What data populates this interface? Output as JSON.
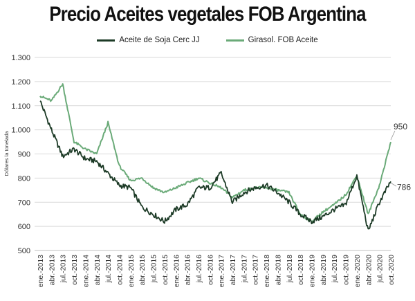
{
  "chart_data": {
    "type": "line",
    "title": "Precio Aceites vegetales FOB Argentina",
    "xlabel": "",
    "ylabel": "Dólares la tonelada",
    "ylim": [
      500,
      1300
    ],
    "yticks": [
      500,
      600,
      700,
      800,
      900,
      1000,
      1100,
      1200,
      1300
    ],
    "ytick_labels": [
      "500",
      "600",
      "700",
      "800",
      "900",
      "1.000",
      "1.100",
      "1.200",
      "1.300"
    ],
    "grid": "horizontal",
    "legend": "top-center",
    "x_tick_labels": [
      "ene.-2013",
      "abr.-2013",
      "jul.-2013",
      "oct.-2013",
      "ene.-2014",
      "abr.-2014",
      "jul.-2014",
      "oct.-2014",
      "ene.-2015",
      "abr.-2015",
      "jul.-2015",
      "oct.-2015",
      "ene.-2016",
      "abr.-2016",
      "jul.-2016",
      "oct.-2016",
      "ene.-2017",
      "abr.-2017",
      "jul.-2017",
      "oct.-2017",
      "ene.-2018",
      "abr.-2018",
      "jul.-2018",
      "oct.-2018",
      "ene.-2019",
      "abr.-2019",
      "jul.-2019",
      "oct.-2019",
      "ene.-2020",
      "abr.-2020",
      "jul.-2020",
      "oct.-2020"
    ],
    "x": [
      "2013-01",
      "2013-04",
      "2013-07",
      "2013-10",
      "2014-01",
      "2014-04",
      "2014-07",
      "2014-10",
      "2015-01",
      "2015-04",
      "2015-07",
      "2015-10",
      "2016-01",
      "2016-04",
      "2016-07",
      "2016-10",
      "2017-01",
      "2017-04",
      "2017-07",
      "2017-10",
      "2018-01",
      "2018-04",
      "2018-07",
      "2018-10",
      "2019-01",
      "2019-04",
      "2019-07",
      "2019-10",
      "2020-01",
      "2020-04",
      "2020-07",
      "2020-10"
    ],
    "series": [
      {
        "name": "Aceite de Soja Cerc JJ",
        "color": "#1c3a26",
        "values": [
          1120,
          1000,
          890,
          920,
          880,
          870,
          820,
          770,
          760,
          680,
          650,
          620,
          670,
          690,
          760,
          760,
          820,
          700,
          740,
          760,
          770,
          740,
          700,
          650,
          620,
          640,
          670,
          690,
          810,
          580,
          700,
          786
        ],
        "end_label": "786"
      },
      {
        "name": "Girasol. FOB Aceite",
        "color": "#6aaa78",
        "values": [
          1140,
          1120,
          1190,
          950,
          920,
          900,
          1030,
          850,
          790,
          800,
          760,
          740,
          760,
          780,
          800,
          780,
          760,
          720,
          750,
          760,
          760,
          750,
          740,
          650,
          620,
          660,
          690,
          730,
          810,
          650,
          770,
          950
        ],
        "end_label": "950"
      }
    ]
  }
}
